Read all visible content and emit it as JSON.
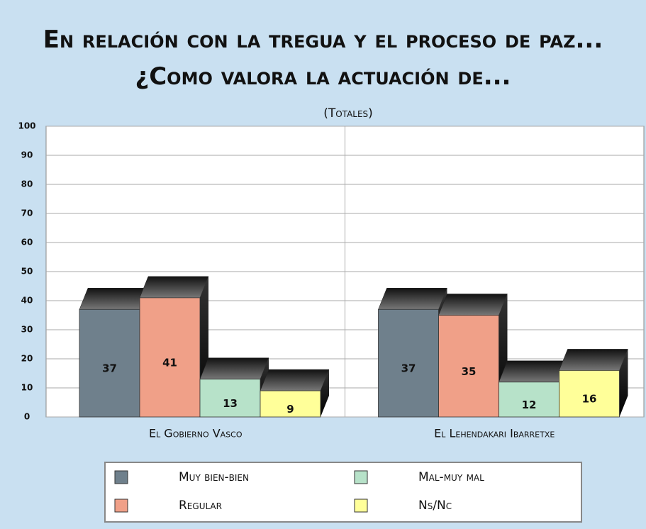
{
  "chart_data": {
    "type": "bar",
    "title": "En relación con la tregua y el proceso de paz...¿Como valora la actuación de...",
    "subtitle": "(Totales)",
    "categories": [
      "El Gobierno Vasco",
      "El Lehendakari Ibarretxe"
    ],
    "series": [
      {
        "name": "Muy bien-bien",
        "color": "#6f808c",
        "values": [
          37,
          37
        ]
      },
      {
        "name": "Regular",
        "color": "#f0a088",
        "values": [
          41,
          35
        ]
      },
      {
        "name": "Mal-muy mal",
        "color": "#b7e2c9",
        "values": [
          13,
          12
        ]
      },
      {
        "name": "Ns/Nc",
        "color": "#ffff99",
        "values": [
          9,
          16
        ]
      }
    ],
    "ylim": [
      0,
      100
    ],
    "yticks": [
      0,
      10,
      20,
      30,
      40,
      50,
      60,
      70,
      80,
      90,
      100
    ],
    "grid": true
  }
}
